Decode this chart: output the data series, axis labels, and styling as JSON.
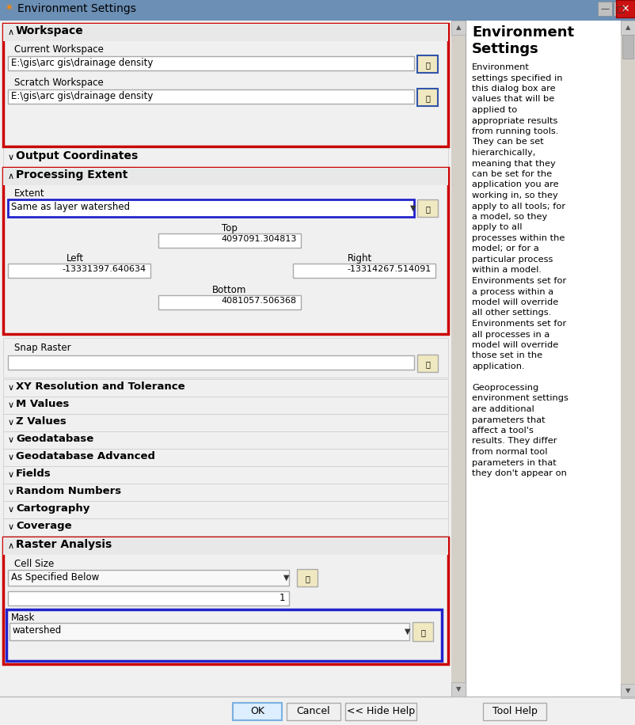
{
  "title_bar_text": "Environment Settings",
  "workspace_label": "Workspace",
  "current_workspace_label": "Current Workspace",
  "current_workspace_value": "E:\\gis\\arc gis\\drainage density",
  "scratch_workspace_label": "Scratch Workspace",
  "scratch_workspace_value": "E:\\gis\\arc gis\\drainage density",
  "output_coords_label": "Output Coordinates",
  "processing_extent_label": "Processing Extent",
  "extent_label": "Extent",
  "extent_value": "Same as layer watershed",
  "top_label": "Top",
  "top_value": "4097091.304813",
  "left_label": "Left",
  "left_value": "-13331397.640634",
  "right_label": "Right",
  "right_value": "-13314267.514091",
  "bottom_label": "Bottom",
  "bottom_value": "4081057.506368",
  "snap_raster_label": "Snap Raster",
  "collapse_sections": [
    "XY Resolution and Tolerance",
    "M Values",
    "Z Values",
    "Geodatabase",
    "Geodatabase Advanced",
    "Fields",
    "Random Numbers",
    "Cartography",
    "Coverage"
  ],
  "raster_analysis_label": "Raster Analysis",
  "cell_size_label": "Cell Size",
  "cell_size_value": "As Specified Below",
  "cell_size_number": "1",
  "mask_label": "Mask",
  "mask_value": "watershed",
  "ok_button": "OK",
  "cancel_button": "Cancel",
  "hide_help_button": "<< Hide Help",
  "tool_help_button": "Tool Help",
  "help_title": "Environment\nSettings",
  "help_text_lines": [
    "Environment",
    "settings specified in",
    "this dialog box are",
    "values that will be",
    "applied to",
    "appropriate results",
    "from running tools.",
    "They can be set",
    "hierarchically,",
    "meaning that they",
    "can be set for the",
    "application you are",
    "working in, so they",
    "apply to all tools; for",
    "a model, so they",
    "apply to all",
    "processes within the",
    "model; or for a",
    "particular process",
    "within a model.",
    "Environments set for",
    "a process within a",
    "model will override",
    "all other settings.",
    "Environments set for",
    "all processes in a",
    "model will override",
    "those set in the",
    "application.",
    "",
    "Geoprocessing",
    "environment settings",
    "are additional",
    "parameters that",
    "affect a tool's",
    "results. They differ",
    "from normal tool",
    "parameters in that",
    "they don't appear on"
  ],
  "colors": {
    "title_bg": "#6b8fb5",
    "window_bg": "#ece9d8",
    "panel_bg": "#f0f0f0",
    "right_panel_bg": "#ffffff",
    "text_box_bg": "#ffffff",
    "dropdown_bg": "#f8f8f8",
    "red_border": "#cc0000",
    "blue_border": "#2222cc",
    "scrollbar_bg": "#d4d0c8",
    "scrollbar_thumb": "#c8c8c8",
    "section_header_bg": "#e8e8e8",
    "button_ok_border": "#7ab0e0",
    "button_ok_bg": "#ddeeff",
    "button_bg": "#f0f0f0",
    "button_border": "#aaaaaa",
    "folder_btn_bg": "#f0e8c0",
    "folder_btn_border": "#3355aa",
    "separator": "#c0c0c0",
    "text_dark": "#000000",
    "text_gray": "#444444"
  }
}
